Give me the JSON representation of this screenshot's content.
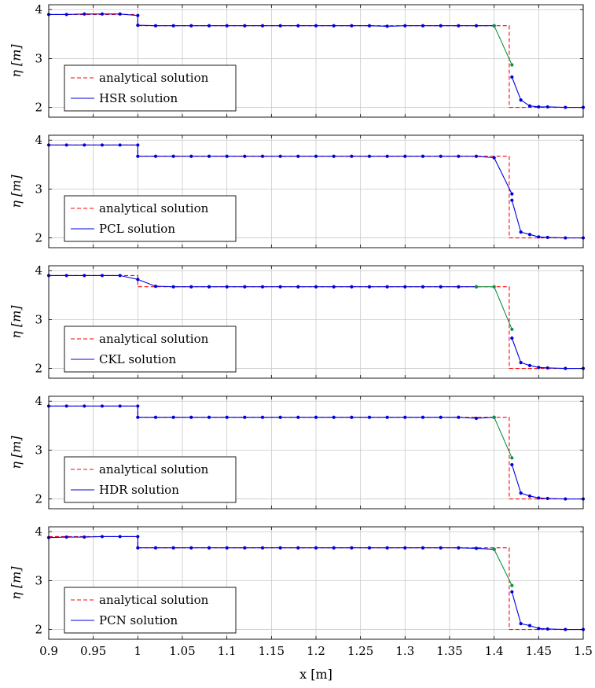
{
  "chart_data": [
    {
      "type": "line",
      "ylabel": "η [m]",
      "xlim": [
        0.9,
        1.5
      ],
      "ylim": [
        1.8,
        4.1
      ],
      "yticks": [
        "2",
        "3",
        "4"
      ],
      "grid": true,
      "legend_position": "bottom-left",
      "series": [
        {
          "name": "analytical solution",
          "style": "dashed",
          "color": "#ff0000",
          "x": [
            0.9,
            1.0,
            1.0,
            1.417,
            1.417,
            1.5
          ],
          "y": [
            3.9,
            3.9,
            3.67,
            3.67,
            2.0,
            2.0
          ]
        },
        {
          "name": "HSR solution",
          "style": "solid",
          "color": "#0000dd",
          "x": [
            0.9,
            0.92,
            0.94,
            0.96,
            0.98,
            1.0,
            1.0,
            1.02,
            1.04,
            1.06,
            1.08,
            1.1,
            1.12,
            1.14,
            1.16,
            1.18,
            1.2,
            1.22,
            1.24,
            1.26,
            1.28,
            1.3,
            1.32,
            1.34,
            1.36,
            1.38,
            1.4
          ],
          "y": [
            3.9,
            3.9,
            3.91,
            3.91,
            3.91,
            3.88,
            3.68,
            3.67,
            3.67,
            3.67,
            3.67,
            3.67,
            3.67,
            3.67,
            3.67,
            3.67,
            3.67,
            3.67,
            3.67,
            3.67,
            3.66,
            3.67,
            3.67,
            3.67,
            3.67,
            3.67,
            3.67
          ]
        },
        {
          "name": "",
          "style": "solid",
          "color": "#0000dd",
          "x": [
            1.42,
            1.43,
            1.44,
            1.45,
            1.46,
            1.48,
            1.5
          ],
          "y": [
            2.62,
            2.15,
            2.03,
            2.01,
            2.01,
            2.0,
            2.0
          ]
        },
        {
          "name": "",
          "style": "solid",
          "color": "#109040",
          "x": [
            1.4,
            1.42
          ],
          "y": [
            3.67,
            2.87
          ]
        }
      ]
    },
    {
      "type": "line",
      "ylabel": "η [m]",
      "xlim": [
        0.9,
        1.5
      ],
      "ylim": [
        1.8,
        4.1
      ],
      "yticks": [
        "2",
        "3",
        "4"
      ],
      "grid": true,
      "legend_position": "bottom-left",
      "series": [
        {
          "name": "analytical solution",
          "style": "dashed",
          "color": "#ff0000",
          "x": [
            0.9,
            1.0,
            1.0,
            1.417,
            1.417,
            1.5
          ],
          "y": [
            3.9,
            3.9,
            3.67,
            3.67,
            2.0,
            2.0
          ]
        },
        {
          "name": "PCL solution",
          "style": "solid",
          "color": "#0000dd",
          "x": [
            0.9,
            0.92,
            0.94,
            0.96,
            0.98,
            1.0,
            1.0,
            1.02,
            1.04,
            1.06,
            1.08,
            1.1,
            1.12,
            1.14,
            1.16,
            1.18,
            1.2,
            1.22,
            1.24,
            1.26,
            1.28,
            1.3,
            1.32,
            1.34,
            1.36,
            1.38,
            1.4,
            1.42
          ],
          "y": [
            3.9,
            3.9,
            3.9,
            3.9,
            3.9,
            3.9,
            3.67,
            3.67,
            3.67,
            3.67,
            3.67,
            3.67,
            3.67,
            3.67,
            3.67,
            3.67,
            3.67,
            3.67,
            3.67,
            3.67,
            3.67,
            3.67,
            3.67,
            3.67,
            3.67,
            3.67,
            3.64,
            2.9
          ]
        },
        {
          "name": "",
          "style": "solid",
          "color": "#0000dd",
          "x": [
            1.42,
            1.43,
            1.44,
            1.45,
            1.46,
            1.48,
            1.5
          ],
          "y": [
            2.77,
            2.12,
            2.07,
            2.02,
            2.01,
            2.0,
            2.0
          ]
        }
      ]
    },
    {
      "type": "line",
      "ylabel": "η [m]",
      "xlim": [
        0.9,
        1.5
      ],
      "ylim": [
        1.8,
        4.1
      ],
      "yticks": [
        "2",
        "3",
        "4"
      ],
      "grid": true,
      "legend_position": "bottom-left",
      "series": [
        {
          "name": "analytical solution",
          "style": "dashed",
          "color": "#ff0000",
          "x": [
            0.9,
            1.0,
            1.0,
            1.417,
            1.417,
            1.5
          ],
          "y": [
            3.9,
            3.9,
            3.67,
            3.67,
            2.0,
            2.0
          ]
        },
        {
          "name": "CKL solution",
          "style": "solid",
          "color": "#0000dd",
          "x": [
            0.9,
            0.92,
            0.94,
            0.96,
            0.98,
            1.0,
            1.02,
            1.04,
            1.06,
            1.08,
            1.1,
            1.12,
            1.14,
            1.16,
            1.18,
            1.2,
            1.22,
            1.24,
            1.26,
            1.28,
            1.3,
            1.32,
            1.34,
            1.36,
            1.38
          ],
          "y": [
            3.9,
            3.9,
            3.9,
            3.9,
            3.9,
            3.82,
            3.68,
            3.67,
            3.67,
            3.67,
            3.67,
            3.67,
            3.67,
            3.67,
            3.67,
            3.67,
            3.67,
            3.67,
            3.67,
            3.67,
            3.67,
            3.67,
            3.67,
            3.67,
            3.67
          ]
        },
        {
          "name": "",
          "style": "solid",
          "color": "#109040",
          "x": [
            1.38,
            1.4,
            1.42
          ],
          "y": [
            3.67,
            3.67,
            2.8
          ]
        },
        {
          "name": "",
          "style": "solid",
          "color": "#0000dd",
          "x": [
            1.42,
            1.43,
            1.44,
            1.45,
            1.46,
            1.48,
            1.5
          ],
          "y": [
            2.62,
            2.12,
            2.06,
            2.02,
            2.01,
            2.0,
            2.0
          ]
        }
      ]
    },
    {
      "type": "line",
      "ylabel": "η [m]",
      "xlim": [
        0.9,
        1.5
      ],
      "ylim": [
        1.8,
        4.1
      ],
      "yticks": [
        "2",
        "3",
        "4"
      ],
      "grid": true,
      "legend_position": "bottom-left",
      "series": [
        {
          "name": "analytical solution",
          "style": "dashed",
          "color": "#ff0000",
          "x": [
            0.9,
            1.0,
            1.0,
            1.417,
            1.417,
            1.5
          ],
          "y": [
            3.9,
            3.9,
            3.67,
            3.67,
            2.0,
            2.0
          ]
        },
        {
          "name": "HDR solution",
          "style": "solid",
          "color": "#0000dd",
          "x": [
            0.9,
            0.92,
            0.94,
            0.96,
            0.98,
            1.0,
            1.0,
            1.02,
            1.04,
            1.06,
            1.08,
            1.1,
            1.12,
            1.14,
            1.16,
            1.18,
            1.2,
            1.22,
            1.24,
            1.26,
            1.28,
            1.3,
            1.32,
            1.34,
            1.36,
            1.38,
            1.4
          ],
          "y": [
            3.9,
            3.9,
            3.9,
            3.9,
            3.9,
            3.9,
            3.67,
            3.67,
            3.67,
            3.67,
            3.67,
            3.67,
            3.67,
            3.67,
            3.67,
            3.67,
            3.67,
            3.67,
            3.67,
            3.67,
            3.67,
            3.67,
            3.67,
            3.67,
            3.67,
            3.65,
            3.67
          ]
        },
        {
          "name": "",
          "style": "solid",
          "color": "#109040",
          "x": [
            1.4,
            1.42
          ],
          "y": [
            3.67,
            2.84
          ]
        },
        {
          "name": "",
          "style": "solid",
          "color": "#0000dd",
          "x": [
            1.42,
            1.43,
            1.44,
            1.45,
            1.46,
            1.48,
            1.5
          ],
          "y": [
            2.7,
            2.12,
            2.06,
            2.02,
            2.01,
            2.0,
            2.0
          ]
        }
      ]
    },
    {
      "type": "line",
      "ylabel": "η [m]",
      "xlabel": "x [m]",
      "xlim": [
        0.9,
        1.5
      ],
      "ylim": [
        1.8,
        4.1
      ],
      "yticks": [
        "2",
        "3",
        "4"
      ],
      "xticks": [
        "0.9",
        "0.95",
        "1",
        "1.05",
        "1.1",
        "1.15",
        "1.2",
        "1.25",
        "1.3",
        "1.35",
        "1.4",
        "1.45",
        "1.5"
      ],
      "grid": true,
      "legend_position": "bottom-left",
      "series": [
        {
          "name": "analytical solution",
          "style": "dashed",
          "color": "#ff0000",
          "x": [
            0.9,
            1.0,
            1.0,
            1.417,
            1.417,
            1.5
          ],
          "y": [
            3.9,
            3.9,
            3.67,
            3.67,
            2.0,
            2.0
          ]
        },
        {
          "name": "PCN solution",
          "style": "solid",
          "color": "#0000dd",
          "x": [
            0.9,
            0.92,
            0.94,
            0.96,
            0.98,
            1.0,
            1.0,
            1.02,
            1.04,
            1.06,
            1.08,
            1.1,
            1.12,
            1.14,
            1.16,
            1.18,
            1.2,
            1.22,
            1.24,
            1.26,
            1.28,
            1.3,
            1.32,
            1.34,
            1.36,
            1.38,
            1.4
          ],
          "y": [
            3.88,
            3.89,
            3.89,
            3.9,
            3.9,
            3.9,
            3.67,
            3.67,
            3.67,
            3.67,
            3.67,
            3.67,
            3.67,
            3.67,
            3.67,
            3.67,
            3.67,
            3.67,
            3.67,
            3.67,
            3.67,
            3.67,
            3.67,
            3.67,
            3.67,
            3.66,
            3.64
          ]
        },
        {
          "name": "",
          "style": "solid",
          "color": "#109040",
          "x": [
            1.4,
            1.42
          ],
          "y": [
            3.64,
            2.9
          ]
        },
        {
          "name": "",
          "style": "solid",
          "color": "#0000dd",
          "x": [
            1.42,
            1.43,
            1.44,
            1.45,
            1.46,
            1.48,
            1.5
          ],
          "y": [
            2.77,
            2.12,
            2.08,
            2.02,
            2.01,
            2.0,
            2.0
          ]
        }
      ]
    }
  ]
}
